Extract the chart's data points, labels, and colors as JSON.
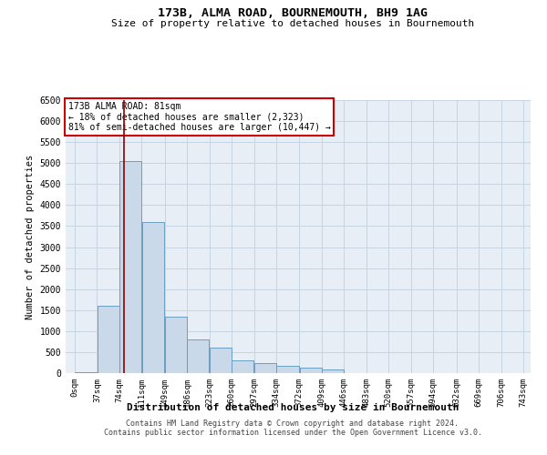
{
  "title": "173B, ALMA ROAD, BOURNEMOUTH, BH9 1AG",
  "subtitle": "Size of property relative to detached houses in Bournemouth",
  "xlabel": "Distribution of detached houses by size in Bournemouth",
  "ylabel": "Number of detached properties",
  "footer_line1": "Contains HM Land Registry data © Crown copyright and database right 2024.",
  "footer_line2": "Contains public sector information licensed under the Open Government Licence v3.0.",
  "annotation_title": "173B ALMA ROAD: 81sqm",
  "annotation_line1": "← 18% of detached houses are smaller (2,323)",
  "annotation_line2": "81% of semi-detached houses are larger (10,447) →",
  "property_size": 81,
  "bar_edges": [
    0,
    37,
    74,
    111,
    149,
    186,
    223,
    260,
    297,
    334,
    372,
    409,
    446,
    483,
    520,
    557,
    594,
    632,
    669,
    706,
    743
  ],
  "bar_heights": [
    30,
    1600,
    5050,
    3600,
    1350,
    800,
    600,
    300,
    230,
    180,
    120,
    80,
    0,
    0,
    0,
    0,
    0,
    0,
    0,
    0
  ],
  "bar_color": "#c9d9ea",
  "bar_edge_color": "#6a9ec0",
  "vline_color": "#8b0000",
  "vline_x": 81,
  "annotation_box_color": "#ffffff",
  "annotation_box_edge": "#cc0000",
  "grid_color": "#c8d4e0",
  "bg_color": "#e8eef5",
  "ylim": [
    0,
    6500
  ],
  "yticks": [
    0,
    500,
    1000,
    1500,
    2000,
    2500,
    3000,
    3500,
    4000,
    4500,
    5000,
    5500,
    6000,
    6500
  ]
}
